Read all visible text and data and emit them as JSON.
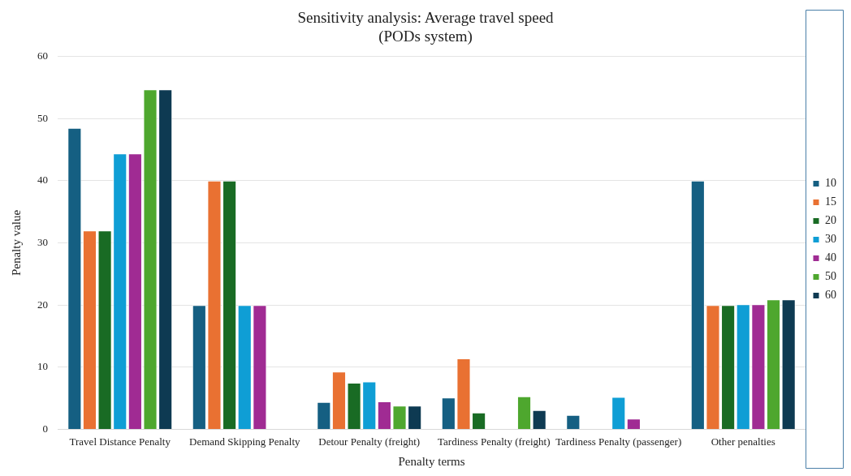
{
  "chart_data": {
    "type": "bar",
    "title": "Sensitivity analysis: Average travel speed",
    "subtitle": "(PODs system)",
    "xlabel": "Penalty terms",
    "ylabel": "Penalty value",
    "categories": [
      "Travel Distance Penalty",
      "Demand Skipping Penalty",
      "Detour Penalty (freight)",
      "Tardiness Penalty (freight)",
      "Tardiness Penalty (passenger)",
      "Other penalties"
    ],
    "series": [
      {
        "name": "10",
        "color": "#155f82",
        "values": [
          48.5,
          20,
          4.4,
          5.1,
          2.3,
          40
        ]
      },
      {
        "name": "15",
        "color": "#e97132",
        "values": [
          32,
          40,
          9.3,
          11.4,
          0,
          20
        ]
      },
      {
        "name": "20",
        "color": "#196b24",
        "values": [
          32,
          40,
          7.5,
          2.7,
          0,
          20
        ]
      },
      {
        "name": "30",
        "color": "#0f9ed5",
        "values": [
          44.4,
          20,
          7.7,
          0,
          5.2,
          20.1
        ]
      },
      {
        "name": "40",
        "color": "#a02b93",
        "values": [
          44.4,
          20,
          4.5,
          0,
          1.7,
          20.1
        ]
      },
      {
        "name": "50",
        "color": "#4ea72e",
        "values": [
          54.7,
          0,
          3.8,
          5.3,
          0,
          20.9
        ]
      },
      {
        "name": "60",
        "color": "#0e3a52",
        "values": [
          54.7,
          0,
          3.8,
          3.1,
          0,
          20.9
        ]
      }
    ],
    "ylim": [
      0,
      60
    ],
    "yticks": [
      0,
      10,
      20,
      30,
      40,
      50,
      60
    ],
    "grid": "y",
    "legend": "right"
  }
}
